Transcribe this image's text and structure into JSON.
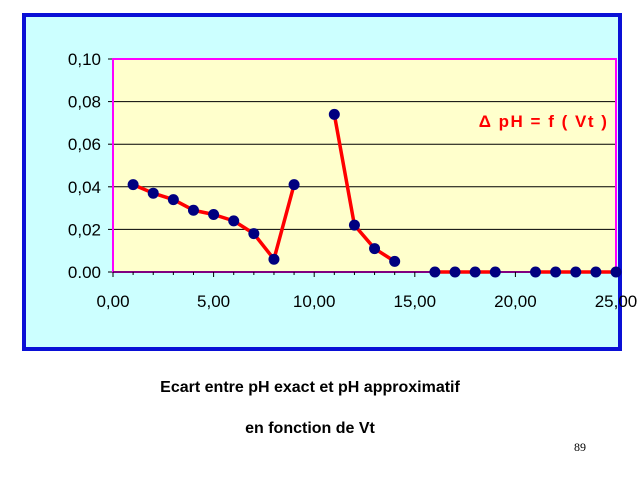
{
  "caption": {
    "line1": "Ecart entre pH exact et pH approximatif",
    "line2": "en fonction de Vt"
  },
  "page_number": "89",
  "colors": {
    "frame_background": "#ccffff",
    "frame_border": "#0a10d6",
    "plot_background": "#ffffcc",
    "plot_border": "#ff00ff",
    "line": "#ff0000",
    "marker": "#000080",
    "title": "#ff0000"
  },
  "chart_data": {
    "type": "line",
    "title": "Δ pH = f ( Vt )",
    "xlabel": "",
    "ylabel": "",
    "xlim": [
      0,
      25
    ],
    "ylim": [
      0,
      0.1
    ],
    "grid": "horizontal",
    "x_ticks": [
      "0,00",
      "5,00",
      "10,00",
      "15,00",
      "20,00",
      "25,00"
    ],
    "y_ticks": [
      "0.00",
      "0,02",
      "0,04",
      "0,06",
      "0,08",
      "0,10"
    ],
    "series": [
      {
        "marker": "circle",
        "segments": [
          [
            [
              1,
              0.041
            ],
            [
              2,
              0.037
            ],
            [
              3,
              0.034
            ],
            [
              4,
              0.029
            ],
            [
              5,
              0.027
            ],
            [
              6,
              0.024
            ],
            [
              7,
              0.018
            ],
            [
              8,
              0.006
            ],
            [
              9,
              0.041
            ]
          ],
          [
            [
              11,
              0.074
            ],
            [
              12,
              0.022
            ],
            [
              13,
              0.011
            ],
            [
              14,
              0.005
            ]
          ],
          [
            [
              16,
              0.0
            ],
            [
              17,
              0.0
            ],
            [
              18,
              0.0
            ],
            [
              19,
              0.0
            ]
          ],
          [
            [
              21,
              0.0
            ],
            [
              22,
              0.0
            ],
            [
              23,
              0.0
            ],
            [
              24,
              0.0
            ],
            [
              25,
              0.0
            ]
          ]
        ]
      }
    ]
  }
}
